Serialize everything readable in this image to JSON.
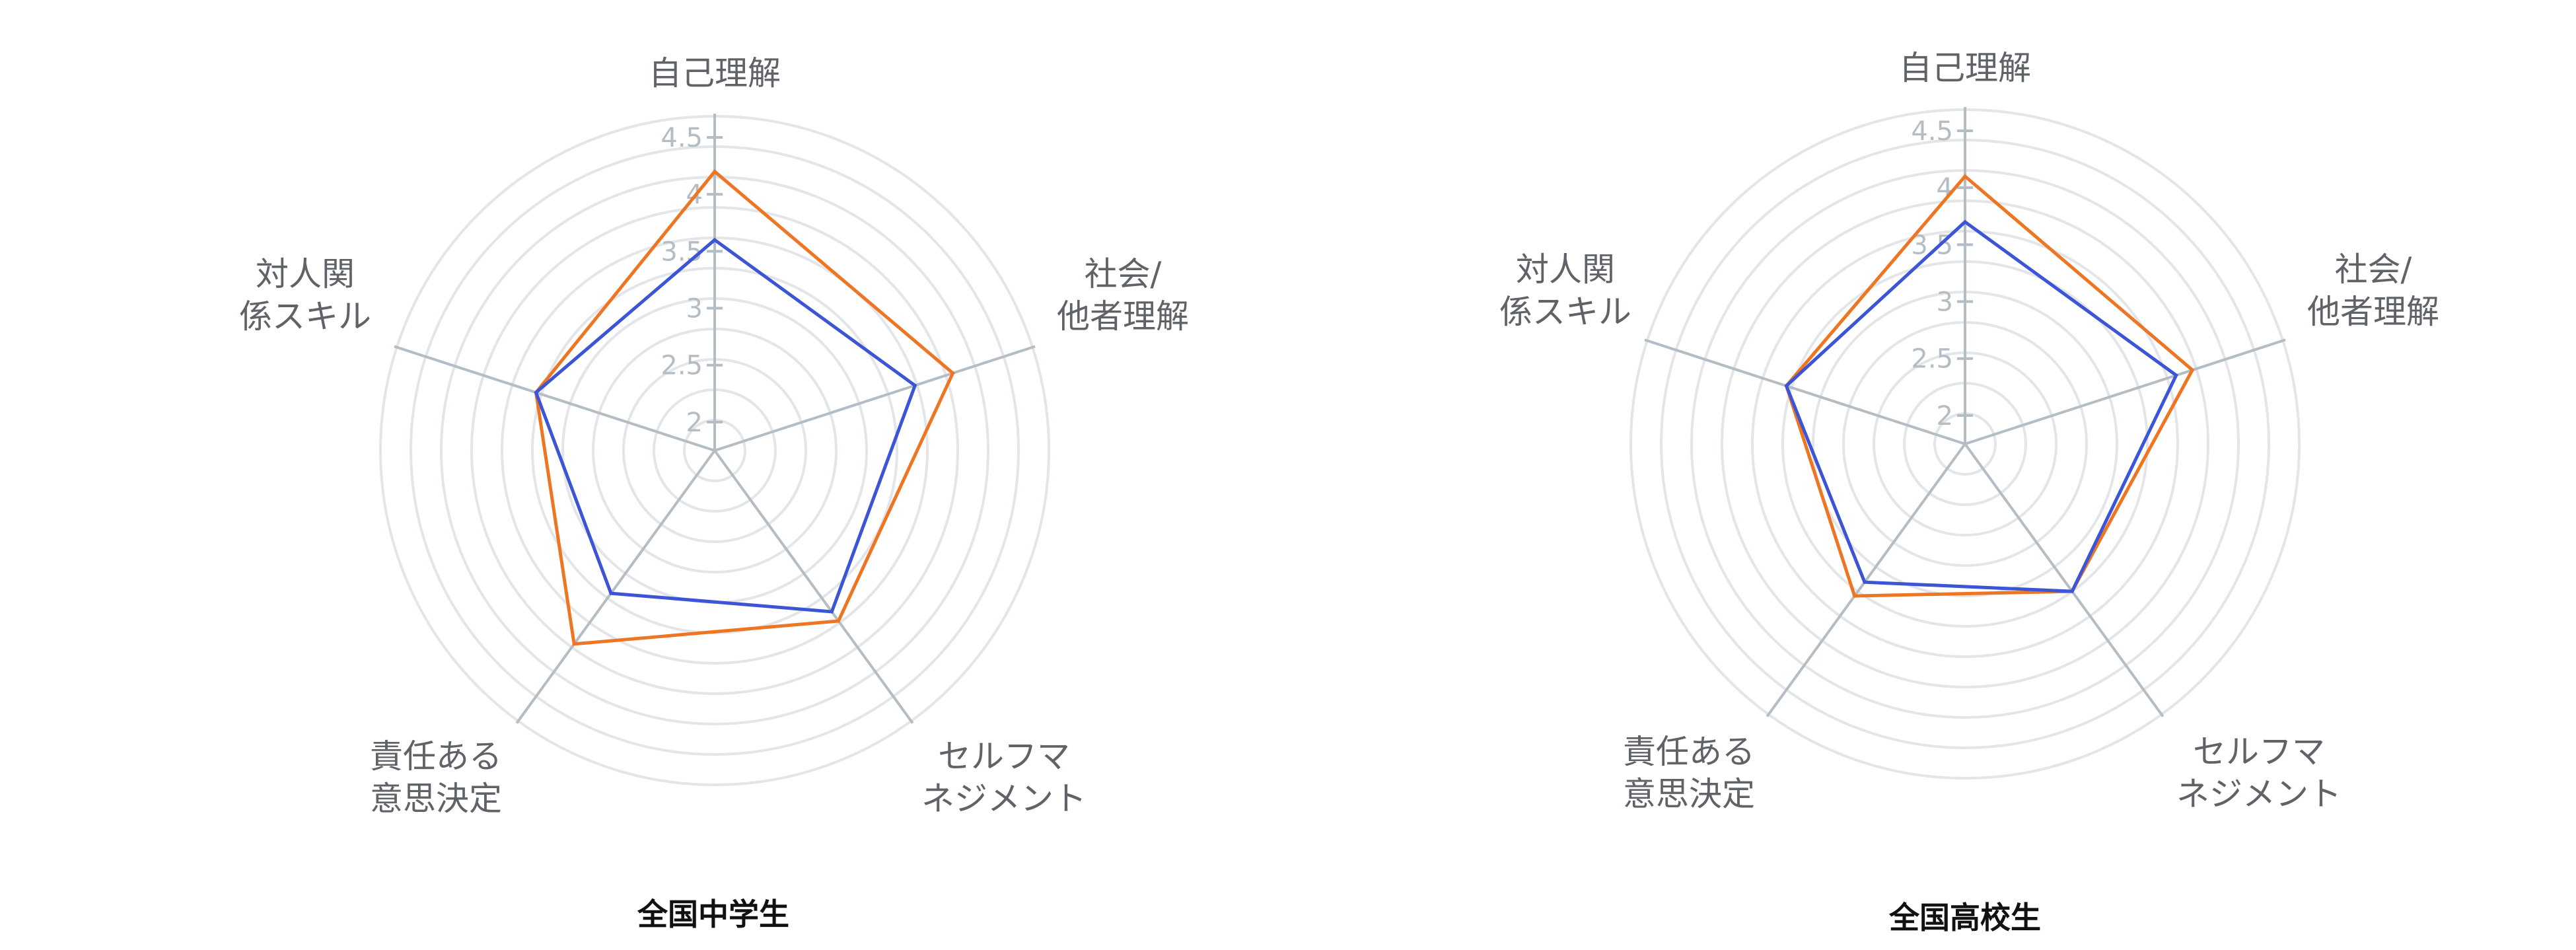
{
  "chart_data": [
    {
      "type": "radar",
      "title": "全国中学生",
      "axes": [
        [
          "自己理解"
        ],
        [
          "社会/",
          "他者理解"
        ],
        [
          "セルフマ",
          "ネジメント"
        ],
        [
          "責任ある",
          "意思決定"
        ],
        [
          "対人関",
          "係スキル"
        ]
      ],
      "r_ticks": [
        "2",
        "2.5",
        "3",
        "3.5",
        "4",
        "4.5"
      ],
      "r_range": [
        1.75,
        4.5
      ],
      "grid": true,
      "series": [
        {
          "color": "#ee7623",
          "values": [
            4.2,
            3.95,
            3.6,
            3.85,
            3.4
          ]
        },
        {
          "color": "#3c55d6",
          "values": [
            3.6,
            3.6,
            3.5,
            3.3,
            3.4
          ]
        }
      ]
    },
    {
      "type": "radar",
      "title": "全国高校生",
      "axes": [
        [
          "自己理解"
        ],
        [
          "社会/",
          "他者理解"
        ],
        [
          "セルフマ",
          "ネジメント"
        ],
        [
          "責任ある",
          "意思決定"
        ],
        [
          "対人関",
          "係スキル"
        ]
      ],
      "r_ticks": [
        "2",
        "2.5",
        "3",
        "3.5",
        "4",
        "4.5"
      ],
      "r_range": [
        1.75,
        4.5
      ],
      "grid": true,
      "series": [
        {
          "color": "#ee7623",
          "values": [
            4.1,
            3.85,
            3.35,
            3.4,
            3.4
          ]
        },
        {
          "color": "#3c55d6",
          "values": [
            3.7,
            3.7,
            3.35,
            3.25,
            3.4
          ]
        }
      ]
    }
  ]
}
